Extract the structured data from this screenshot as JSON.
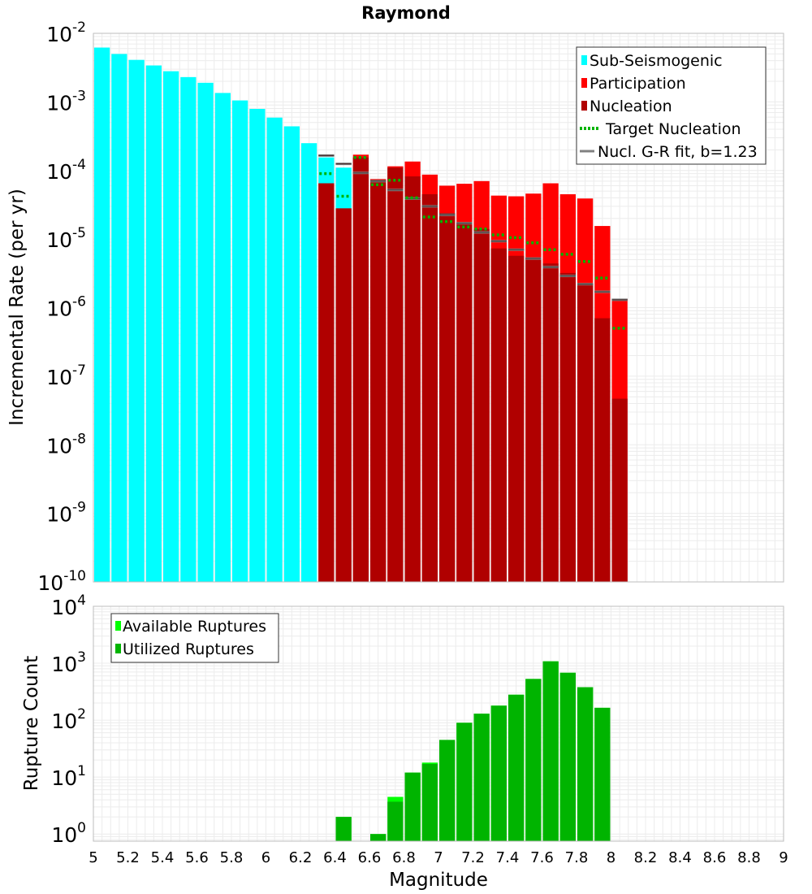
{
  "chart_data": [
    {
      "type": "bar",
      "title": "Raymond",
      "ylabel": "Incremental Rate (per yr)",
      "xlabel": "",
      "y_scale": "log",
      "ylim": [
        1e-10,
        0.01
      ],
      "xlim": [
        5,
        9
      ],
      "grid": true,
      "legend_position": "top-right",
      "y_ticks": [
        {
          "base": "10",
          "exp": "-2",
          "value": 0.01
        },
        {
          "base": "10",
          "exp": "-3",
          "value": 0.001
        },
        {
          "base": "10",
          "exp": "-4",
          "value": 0.0001
        },
        {
          "base": "10",
          "exp": "-5",
          "value": 1e-05
        },
        {
          "base": "10",
          "exp": "-6",
          "value": 1e-06
        },
        {
          "base": "10",
          "exp": "-7",
          "value": 1e-07
        },
        {
          "base": "10",
          "exp": "-8",
          "value": 1e-08
        },
        {
          "base": "10",
          "exp": "-9",
          "value": 1e-09
        },
        {
          "base": "10",
          "exp": "-10",
          "value": 1e-10
        }
      ],
      "legend": [
        {
          "label": "Sub-Seismogenic",
          "color": "#00ffff",
          "style": "box"
        },
        {
          "label": "Participation",
          "color": "#ff0000",
          "style": "box"
        },
        {
          "label": "Nucleation",
          "color": "#b00000",
          "style": "box"
        },
        {
          "label": "Target Nucleation",
          "color": "#00b400",
          "style": "dotted-line"
        },
        {
          "label": "Nucl. G-R fit, b=1.23",
          "color": "#808080",
          "style": "line"
        }
      ],
      "series": [
        {
          "name": "Sub-Seismogenic",
          "color": "#00ffff",
          "x": [
            5.05,
            5.15,
            5.25,
            5.35,
            5.45,
            5.55,
            5.65,
            5.75,
            5.85,
            5.95,
            6.05,
            6.15,
            6.25,
            6.35,
            6.45
          ],
          "values": [
            0.0062,
            0.005,
            0.0041,
            0.0034,
            0.0028,
            0.0023,
            0.0019,
            0.00135,
            0.00105,
            0.00079,
            0.00059,
            0.00044,
            0.00025,
            0.000155,
            0.00011
          ]
        },
        {
          "name": "Participation",
          "color": "#ff0000",
          "x": [
            6.35,
            6.45,
            6.55,
            6.65,
            6.75,
            6.85,
            6.95,
            7.05,
            7.15,
            7.25,
            7.35,
            7.45,
            7.55,
            7.65,
            7.75,
            7.85,
            7.95,
            8.05
          ],
          "values": [
            6.5e-05,
            2.8e-05,
            0.00017,
            7.5e-05,
            0.000115,
            0.000135,
            8.7e-05,
            6e-05,
            6.4e-05,
            7e-05,
            4.3e-05,
            4.2e-05,
            4.6e-05,
            6.5e-05,
            4.5e-05,
            3.9e-05,
            1.55e-05,
            1.35e-06
          ]
        },
        {
          "name": "Nucleation",
          "color": "#b00000",
          "x": [
            6.35,
            6.45,
            6.55,
            6.65,
            6.75,
            6.85,
            6.95,
            7.05,
            7.15,
            7.25,
            7.35,
            7.45,
            7.55,
            7.65,
            7.75,
            7.85,
            7.95,
            8.05
          ],
          "values": [
            6.5e-05,
            2.8e-05,
            0.000155,
            7.3e-05,
            0.00011,
            8.2e-05,
            4.5e-05,
            2.4e-05,
            1.7e-05,
            1.4e-05,
            7.3e-06,
            5.7e-06,
            5.4e-06,
            4.4e-06,
            3.2e-06,
            2.2e-06,
            7e-07,
            4.7e-08
          ]
        },
        {
          "name": "Target Nucleation",
          "color": "#00b400",
          "x": [
            6.35,
            6.45,
            6.55,
            6.65,
            6.75,
            6.85,
            6.95,
            7.05,
            7.15,
            7.25,
            7.35,
            7.45,
            7.55,
            7.65,
            7.75,
            7.85,
            7.95,
            8.05
          ],
          "values": [
            9e-05,
            4.2e-05,
            0.000155,
            6.2e-05,
            7.2e-05,
            4e-05,
            2.1e-05,
            1.8e-05,
            1.5e-05,
            1.4e-05,
            1.15e-05,
            1.05e-05,
            8.8e-06,
            7e-06,
            6e-06,
            4.7e-06,
            2.7e-06,
            5e-07
          ]
        },
        {
          "name": "Nucl. G-R fit, b=1.23",
          "color": "#808080",
          "x": [
            6.35,
            6.45,
            6.55,
            6.65,
            6.75,
            6.85,
            6.95,
            7.05,
            7.15,
            7.25,
            7.35,
            7.45,
            7.55,
            7.65,
            7.75,
            7.85,
            7.95,
            8.05
          ],
          "values": [
            0.000165,
            0.000125,
            9.2e-05,
            7e-05,
            5.2e-05,
            3.9e-05,
            3e-05,
            2.25e-05,
            1.7e-05,
            1.25e-05,
            9.3e-06,
            7e-06,
            5.2e-06,
            3.9e-06,
            2.9e-06,
            2.2e-06,
            1.7e-06,
            1.3e-06
          ]
        }
      ]
    },
    {
      "type": "bar",
      "title": "",
      "xlabel": "Magnitude",
      "ylabel": "Rupture Count",
      "y_scale": "log",
      "ylim": [
        0.75,
        10000
      ],
      "xlim": [
        5,
        9
      ],
      "grid": true,
      "legend_position": "top-left",
      "x_ticks": [
        "5",
        "5.2",
        "5.4",
        "5.6",
        "5.8",
        "6",
        "6.2",
        "6.4",
        "6.6",
        "6.8",
        "7",
        "7.2",
        "7.4",
        "7.6",
        "7.8",
        "8",
        "8.2",
        "8.4",
        "8.6",
        "8.8",
        "9"
      ],
      "y_ticks": [
        {
          "base": "10",
          "exp": "4",
          "value": 10000
        },
        {
          "base": "10",
          "exp": "3",
          "value": 1000
        },
        {
          "base": "10",
          "exp": "2",
          "value": 100
        },
        {
          "base": "10",
          "exp": "1",
          "value": 10
        },
        {
          "base": "10",
          "exp": "0",
          "value": 1
        }
      ],
      "legend": [
        {
          "label": "Available Ruptures",
          "color": "#00ff00",
          "style": "box"
        },
        {
          "label": "Utilized Ruptures",
          "color": "#00b400",
          "style": "box"
        }
      ],
      "series": [
        {
          "name": "Available Ruptures",
          "color": "#00ff00",
          "x": [
            6.45,
            6.65,
            6.75,
            6.85,
            6.95,
            7.05,
            7.15,
            7.25,
            7.35,
            7.45,
            7.55,
            7.65,
            7.75,
            7.85,
            7.95
          ],
          "values": [
            2,
            1,
            4.5,
            12,
            18,
            45,
            90,
            130,
            180,
            280,
            530,
            1080,
            680,
            380,
            165
          ]
        },
        {
          "name": "Utilized Ruptures",
          "color": "#00b400",
          "x": [
            6.45,
            6.65,
            6.75,
            6.85,
            6.95,
            7.05,
            7.15,
            7.25,
            7.35,
            7.45,
            7.55,
            7.65,
            7.75,
            7.85,
            7.95
          ],
          "values": [
            2,
            1,
            3.7,
            12,
            17,
            45,
            90,
            130,
            180,
            280,
            530,
            1080,
            680,
            380,
            165
          ]
        }
      ]
    }
  ]
}
